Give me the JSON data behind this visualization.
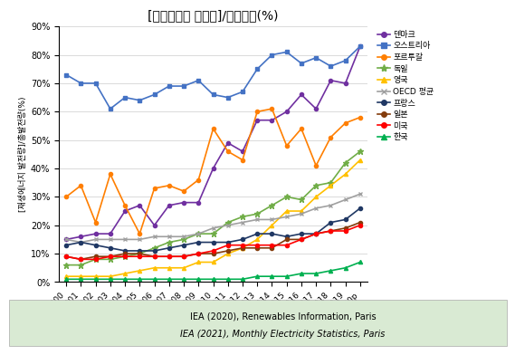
{
  "title": "[재생에너지 발전량]/총발전량(%)",
  "ylabel": "[재생에너지 발전량]/총발전량(%)",
  "years": [
    2000,
    2001,
    2002,
    2003,
    2004,
    2005,
    2006,
    2007,
    2008,
    2009,
    2010,
    2011,
    2012,
    2013,
    2014,
    2015,
    2016,
    2017,
    2018,
    2019,
    "2020p"
  ],
  "series": {
    "덴마크": {
      "color": "#7030A0",
      "marker": "o",
      "values": [
        15,
        16,
        17,
        17,
        25,
        27,
        20,
        27,
        28,
        28,
        40,
        49,
        46,
        57,
        57,
        60,
        66,
        61,
        71,
        70,
        83
      ]
    },
    "오스트리아": {
      "color": "#4472C4",
      "marker": "s",
      "values": [
        73,
        70,
        70,
        61,
        65,
        64,
        66,
        69,
        69,
        71,
        66,
        65,
        67,
        75,
        80,
        81,
        77,
        79,
        76,
        78,
        83
      ]
    },
    "포르투갈": {
      "color": "#FF7F00",
      "marker": "o",
      "values": [
        30,
        34,
        21,
        38,
        27,
        17,
        33,
        34,
        32,
        36,
        54,
        46,
        43,
        60,
        61,
        48,
        54,
        41,
        51,
        56,
        58
      ]
    },
    "독일": {
      "color": "#70AD47",
      "marker": "*",
      "values": [
        6,
        6,
        8,
        8,
        9,
        10,
        12,
        14,
        15,
        17,
        17,
        21,
        23,
        24,
        27,
        30,
        29,
        34,
        35,
        42,
        46
      ]
    },
    "영국": {
      "color": "#FFC000",
      "marker": "^",
      "values": [
        2,
        2,
        2,
        2,
        3,
        4,
        5,
        5,
        5,
        7,
        7,
        10,
        12,
        15,
        20,
        25,
        25,
        30,
        34,
        38,
        43
      ]
    },
    "OECD 평균": {
      "color": "#A0A0A0",
      "marker": "x",
      "values": [
        15,
        14,
        15,
        15,
        15,
        15,
        16,
        16,
        16,
        17,
        19,
        20,
        21,
        22,
        22,
        23,
        24,
        26,
        27,
        29,
        31
      ]
    },
    "프랑스": {
      "color": "#203864",
      "marker": "o",
      "values": [
        13,
        14,
        13,
        12,
        11,
        11,
        11,
        12,
        13,
        14,
        14,
        14,
        15,
        17,
        17,
        16,
        17,
        17,
        21,
        22,
        26
      ]
    },
    "일본": {
      "color": "#843C0C",
      "marker": "o",
      "values": [
        9,
        8,
        9,
        9,
        10,
        10,
        9,
        9,
        9,
        10,
        10,
        11,
        12,
        12,
        12,
        15,
        15,
        17,
        18,
        19,
        21
      ]
    },
    "미국": {
      "color": "#FF0000",
      "marker": "o",
      "values": [
        9,
        8,
        8,
        9,
        9,
        9,
        9,
        9,
        9,
        10,
        11,
        13,
        13,
        13,
        13,
        13,
        15,
        17,
        18,
        18,
        20
      ]
    },
    "한국": {
      "color": "#00B050",
      "marker": "^",
      "values": [
        1,
        1,
        1,
        1,
        1,
        1,
        1,
        1,
        1,
        1,
        1,
        1,
        1,
        2,
        2,
        2,
        3,
        3,
        4,
        5,
        7
      ]
    }
  },
  "ylim": [
    0,
    90
  ],
  "yticks": [
    0,
    10,
    20,
    30,
    40,
    50,
    60,
    70,
    80,
    90
  ],
  "ytick_labels": [
    "0%",
    "10%",
    "20%",
    "30%",
    "40%",
    "50%",
    "60%",
    "70%",
    "80%",
    "90%"
  ],
  "footer_text1": "IEA (2020), Renewables Information, Paris",
  "footer_text2": "IEA (2021), Monthly Electricity Statistics, Paris",
  "background_color": "#FFFFFF",
  "footer_bg": "#D9EAD3"
}
